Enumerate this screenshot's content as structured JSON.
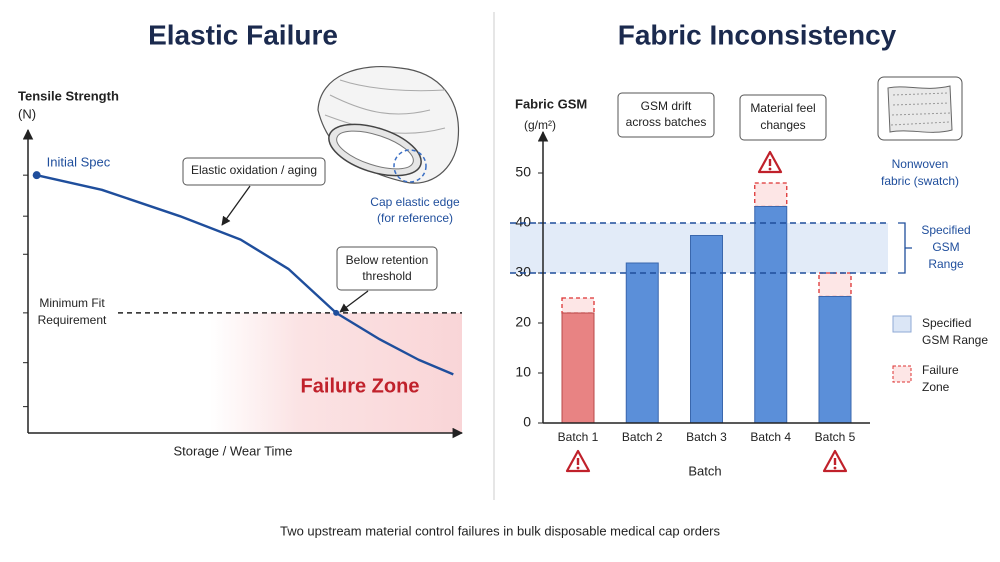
{
  "chart_data": [
    {
      "type": "line",
      "title": "Elastic Failure",
      "y_label": [
        "Tensile Strength",
        "(N)"
      ],
      "x_label": "Storage / Wear Time",
      "x": [
        0.2,
        1.7,
        3.5,
        4.9,
        6,
        7.1,
        8.1,
        9,
        9.8
      ],
      "values": [
        8.8,
        8.3,
        7.4,
        6.6,
        5.6,
        4.1,
        3.2,
        2.5,
        2
      ],
      "color": "#1f4e9c",
      "xlim": [
        0,
        10
      ],
      "ylim": [
        0,
        10
      ],
      "yticks": [
        0.9,
        2.4,
        4.1,
        6.1,
        7.4,
        8.8
      ],
      "start_label": "Initial Spec",
      "threshold": 4.1,
      "threshold_label": [
        "Minimum Fit",
        "Requirement"
      ],
      "failure_zone_start": 4.2,
      "failure_zone_label": "Failure Zone",
      "annotations": [
        "Elastic oxidation / aging",
        "Below retention",
        "threshold"
      ],
      "illustration_label": [
        "Cap elastic edge",
        "(for reference)"
      ]
    },
    {
      "type": "bar",
      "title": "Fabric Inconsistency",
      "y_label": [
        "Fabric GSM",
        "(g/m²)"
      ],
      "x_label": "Batch",
      "categories": [
        "Batch 1",
        "Batch 2",
        "Batch 3",
        "Batch 4",
        "Batch 5"
      ],
      "values": [
        22,
        32,
        37.5,
        43.3,
        25.3
      ],
      "colors": [
        "#e88383",
        "#5b8fd9",
        "#5b8fd9",
        "#5b8fd9",
        "#5b8fd9"
      ],
      "failure_outline": [
        25,
        null,
        null,
        48,
        30
      ],
      "ylim": [
        0,
        55
      ],
      "yticks": [
        0,
        10,
        20,
        30,
        40,
        50
      ],
      "spec_range": [
        30,
        40
      ],
      "spec_range_label": [
        "Specified",
        "GSM",
        "Range"
      ],
      "annotations": [
        [
          "GSM drift",
          "across batches"
        ],
        [
          "Material feel",
          "changes"
        ]
      ],
      "swatch_label": [
        "Nonwoven",
        "fabric (swatch)"
      ],
      "legend": [
        [
          "Specified",
          "GSM Range"
        ],
        [
          "Failure",
          "Zone"
        ]
      ]
    }
  ],
  "caption": "Two upstream material control failures in bulk disposable medical cap orders"
}
